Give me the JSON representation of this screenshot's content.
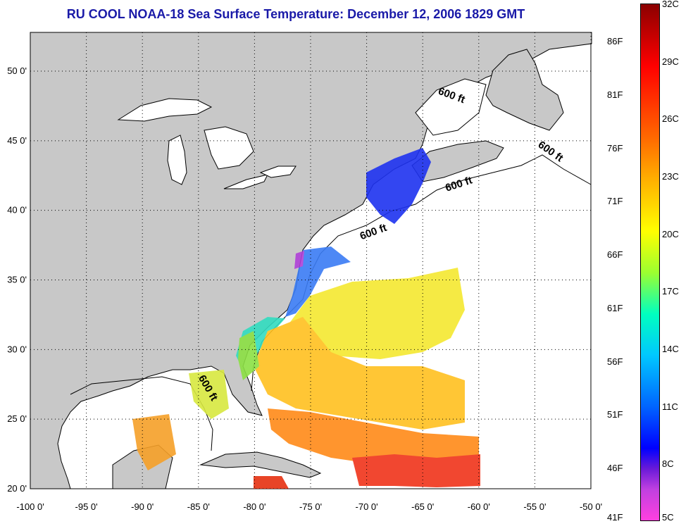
{
  "title": "RU COOL  NOAA-18  Sea Surface Temperature:  December 12, 2006 1829 GMT",
  "map": {
    "lon_range": [
      -100,
      -50
    ],
    "lat_range": [
      20,
      52
    ],
    "lon_ticks": [
      "-100 0'",
      "-95 0'",
      "-90 0'",
      "-85 0'",
      "-80 0'",
      "-75 0'",
      "-70 0'",
      "-65 0'",
      "-60 0'",
      "-55 0'",
      "-50 0'"
    ],
    "lat_ticks": [
      "50 0'",
      "45 0'",
      "40 0'",
      "35 0'",
      "30 0'",
      "25 0'",
      "20 0'"
    ],
    "isobath_label": "600 ft",
    "land_color": "#c8c8c8",
    "ocean_color": "#ffffff"
  },
  "colorbar": {
    "celsius_labels": [
      "32C",
      "29C",
      "26C",
      "23C",
      "20C",
      "17C",
      "14C",
      "11C",
      "8C",
      "5C"
    ],
    "fahrenheit_labels": [
      "86F",
      "81F",
      "76F",
      "71F",
      "66F",
      "61F",
      "56F",
      "51F",
      "46F",
      "41F"
    ]
  }
}
